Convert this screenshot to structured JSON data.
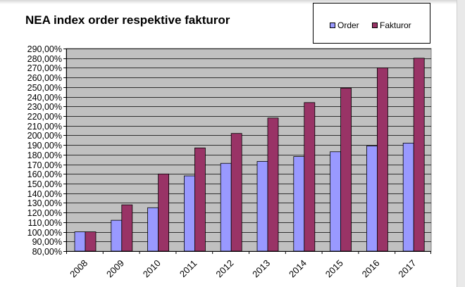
{
  "chart_data": {
    "type": "bar",
    "title": "NEA index order respektive fakturor",
    "xlabel": "",
    "ylabel": "",
    "categories": [
      "2008",
      "2009",
      "2010",
      "2011",
      "2012",
      "2013",
      "2014",
      "2015",
      "2016",
      "2017"
    ],
    "series": [
      {
        "name": "Order",
        "color": "#9999ff",
        "values": [
          100,
          112,
          125,
          158,
          171,
          173,
          178,
          183,
          189,
          192
        ]
      },
      {
        "name": "Fakturor",
        "color": "#993366",
        "values": [
          100,
          128,
          160,
          187,
          202,
          218,
          234,
          249,
          270,
          280
        ]
      }
    ],
    "ylim": [
      80,
      290
    ],
    "ytick_step": 10,
    "ytick_format": "percent_2dec_comma",
    "yticks": [
      "80,00%",
      "90,00%",
      "100,00%",
      "110,00%",
      "120,00%",
      "130,00%",
      "140,00%",
      "150,00%",
      "160,00%",
      "170,00%",
      "180,00%",
      "190,00%",
      "200,00%",
      "210,00%",
      "220,00%",
      "230,00%",
      "240,00%",
      "250,00%",
      "260,00%",
      "270,00%",
      "280,00%",
      "290,00%"
    ],
    "plot_background": "#c0c0c0",
    "grid": true,
    "legend_position": "top-right"
  }
}
